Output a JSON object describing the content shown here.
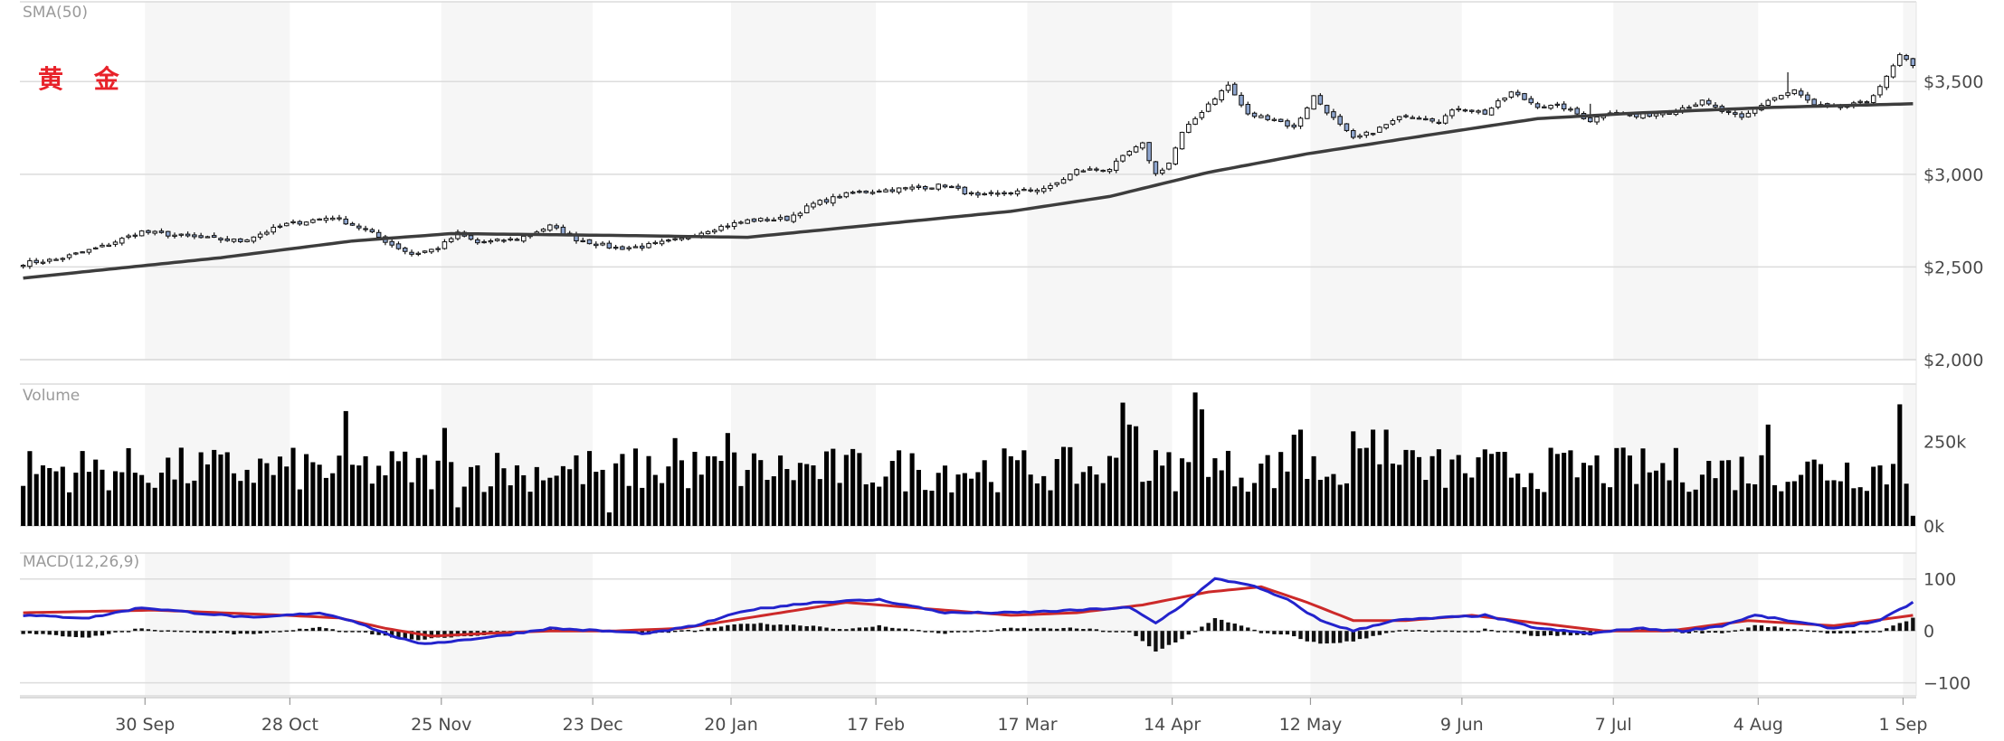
{
  "brand_label": "黄 金",
  "colors": {
    "brand": "#e8222a",
    "candle_up": "#ffffff",
    "candle_down": "#8fa6cf",
    "sma": "#3d3d3d",
    "volume": "#000000",
    "macd": "#2323cc",
    "signal": "#cc2929",
    "histogram": "#111111",
    "band": "#f6f6f6",
    "grid": "#dcdcdc"
  },
  "chart_data": [
    {
      "type": "candlestick",
      "title": "SMA(50)",
      "yticks": [
        {
          "value": 2000,
          "label": "$2,000"
        },
        {
          "value": 2500,
          "label": "$2,500"
        },
        {
          "value": 3000,
          "label": "$3,000"
        },
        {
          "value": 3500,
          "label": "$3,500"
        }
      ],
      "ylim": [
        2000,
        3930
      ],
      "close_anchors": [
        [
          0,
          2520
        ],
        [
          5,
          2540
        ],
        [
          12,
          2610
        ],
        [
          18,
          2690
        ],
        [
          26,
          2660
        ],
        [
          33,
          2640
        ],
        [
          40,
          2730
        ],
        [
          47,
          2770
        ],
        [
          52,
          2700
        ],
        [
          56,
          2620
        ],
        [
          59,
          2570
        ],
        [
          63,
          2600
        ],
        [
          66,
          2680
        ],
        [
          69,
          2630
        ],
        [
          75,
          2650
        ],
        [
          80,
          2720
        ],
        [
          84,
          2650
        ],
        [
          90,
          2600
        ],
        [
          94,
          2610
        ],
        [
          100,
          2650
        ],
        [
          104,
          2700
        ],
        [
          110,
          2750
        ],
        [
          116,
          2760
        ],
        [
          120,
          2840
        ],
        [
          126,
          2900
        ],
        [
          133,
          2920
        ],
        [
          140,
          2940
        ],
        [
          145,
          2880
        ],
        [
          150,
          2900
        ],
        [
          156,
          2930
        ],
        [
          160,
          3020
        ],
        [
          165,
          3030
        ],
        [
          168,
          3120
        ],
        [
          170,
          3160
        ],
        [
          172,
          3000
        ],
        [
          174,
          3060
        ],
        [
          176,
          3220
        ],
        [
          180,
          3380
        ],
        [
          183,
          3480
        ],
        [
          186,
          3320
        ],
        [
          190,
          3300
        ],
        [
          193,
          3250
        ],
        [
          196,
          3420
        ],
        [
          199,
          3300
        ],
        [
          202,
          3190
        ],
        [
          205,
          3230
        ],
        [
          210,
          3320
        ],
        [
          215,
          3290
        ],
        [
          218,
          3360
        ],
        [
          222,
          3330
        ],
        [
          226,
          3440
        ],
        [
          230,
          3370
        ],
        [
          234,
          3360
        ],
        [
          238,
          3290
        ],
        [
          241,
          3340
        ],
        [
          245,
          3310
        ],
        [
          250,
          3340
        ],
        [
          255,
          3390
        ],
        [
          258,
          3340
        ],
        [
          261,
          3300
        ],
        [
          265,
          3400
        ],
        [
          269,
          3450
        ],
        [
          272,
          3370
        ],
        [
          276,
          3360
        ],
        [
          280,
          3390
        ],
        [
          283,
          3520
        ],
        [
          285,
          3640
        ],
        [
          287,
          3580
        ]
      ],
      "sma_anchors": [
        [
          0,
          2440
        ],
        [
          30,
          2550
        ],
        [
          50,
          2640
        ],
        [
          65,
          2680
        ],
        [
          90,
          2670
        ],
        [
          110,
          2660
        ],
        [
          130,
          2730
        ],
        [
          150,
          2800
        ],
        [
          165,
          2880
        ],
        [
          180,
          3010
        ],
        [
          195,
          3110
        ],
        [
          215,
          3220
        ],
        [
          230,
          3300
        ],
        [
          245,
          3330
        ],
        [
          265,
          3360
        ],
        [
          287,
          3380
        ]
      ],
      "spike_highs": [
        [
          183,
          3500
        ],
        [
          268,
          3550
        ],
        [
          238,
          3380
        ]
      ]
    },
    {
      "type": "bar",
      "title": "Volume",
      "yticks": [
        {
          "value": 0,
          "label": "0k"
        },
        {
          "value": 250000,
          "label": "250k"
        }
      ],
      "ylim": [
        0,
        420000
      ],
      "typical_volume": 180000,
      "large_volume_days": [
        [
          49,
          340000
        ],
        [
          64,
          290000
        ],
        [
          76,
          150000
        ],
        [
          99,
          260000
        ],
        [
          107,
          275000
        ],
        [
          167,
          365000
        ],
        [
          168,
          300000
        ],
        [
          169,
          295000
        ],
        [
          178,
          395000
        ],
        [
          179,
          345000
        ],
        [
          193,
          270000
        ],
        [
          194,
          285000
        ],
        [
          202,
          280000
        ],
        [
          205,
          285000
        ],
        [
          207,
          285000
        ],
        [
          210,
          225000
        ],
        [
          265,
          300000
        ],
        [
          285,
          360000
        ]
      ],
      "small_volume_days": [
        [
          66,
          55000
        ],
        [
          89,
          40000
        ],
        [
          287,
          30000
        ]
      ]
    },
    {
      "type": "line",
      "title": "MACD(12,26,9)",
      "yticks": [
        {
          "value": -100,
          "label": "−100"
        },
        {
          "value": 0,
          "label": "0"
        },
        {
          "value": 100,
          "label": "100"
        }
      ],
      "ylim": [
        -125,
        150
      ],
      "macd_anchors": [
        [
          0,
          30
        ],
        [
          10,
          25
        ],
        [
          18,
          45
        ],
        [
          26,
          35
        ],
        [
          35,
          25
        ],
        [
          45,
          35
        ],
        [
          50,
          20
        ],
        [
          55,
          -5
        ],
        [
          60,
          -25
        ],
        [
          65,
          -20
        ],
        [
          72,
          -10
        ],
        [
          80,
          5
        ],
        [
          88,
          0
        ],
        [
          95,
          -5
        ],
        [
          102,
          10
        ],
        [
          110,
          40
        ],
        [
          120,
          55
        ],
        [
          130,
          60
        ],
        [
          140,
          35
        ],
        [
          150,
          35
        ],
        [
          160,
          40
        ],
        [
          168,
          45
        ],
        [
          172,
          15
        ],
        [
          176,
          50
        ],
        [
          181,
          100
        ],
        [
          186,
          90
        ],
        [
          192,
          60
        ],
        [
          197,
          20
        ],
        [
          202,
          0
        ],
        [
          208,
          20
        ],
        [
          215,
          25
        ],
        [
          222,
          30
        ],
        [
          230,
          5
        ],
        [
          238,
          -5
        ],
        [
          245,
          5
        ],
        [
          252,
          0
        ],
        [
          258,
          10
        ],
        [
          263,
          30
        ],
        [
          268,
          20
        ],
        [
          275,
          5
        ],
        [
          282,
          20
        ],
        [
          287,
          55
        ]
      ],
      "signal_anchors": [
        [
          0,
          35
        ],
        [
          20,
          40
        ],
        [
          40,
          30
        ],
        [
          48,
          25
        ],
        [
          55,
          5
        ],
        [
          62,
          -10
        ],
        [
          70,
          -5
        ],
        [
          80,
          0
        ],
        [
          90,
          0
        ],
        [
          100,
          5
        ],
        [
          110,
          25
        ],
        [
          125,
          55
        ],
        [
          140,
          40
        ],
        [
          150,
          30
        ],
        [
          160,
          35
        ],
        [
          170,
          50
        ],
        [
          180,
          75
        ],
        [
          188,
          85
        ],
        [
          195,
          55
        ],
        [
          202,
          20
        ],
        [
          210,
          20
        ],
        [
          220,
          30
        ],
        [
          230,
          15
        ],
        [
          240,
          0
        ],
        [
          250,
          0
        ],
        [
          262,
          20
        ],
        [
          275,
          10
        ],
        [
          287,
          30
        ]
      ]
    }
  ],
  "x_axis": {
    "total_sessions": 288,
    "month_ticks": [
      {
        "label": "30 Sep",
        "index": 19
      },
      {
        "label": "28 Oct",
        "index": 41
      },
      {
        "label": "25 Nov",
        "index": 64
      },
      {
        "label": "23 Dec",
        "index": 87
      },
      {
        "label": "20 Jan",
        "index": 108
      },
      {
        "label": "17 Feb",
        "index": 130
      },
      {
        "label": "17 Mar",
        "index": 153
      },
      {
        "label": "14 Apr",
        "index": 175
      },
      {
        "label": "12 May",
        "index": 196
      },
      {
        "label": "9 Jun",
        "index": 219
      },
      {
        "label": "7 Jul",
        "index": 242
      },
      {
        "label": "4 Aug",
        "index": 264
      },
      {
        "label": "1 Sep",
        "index": 286
      }
    ]
  }
}
